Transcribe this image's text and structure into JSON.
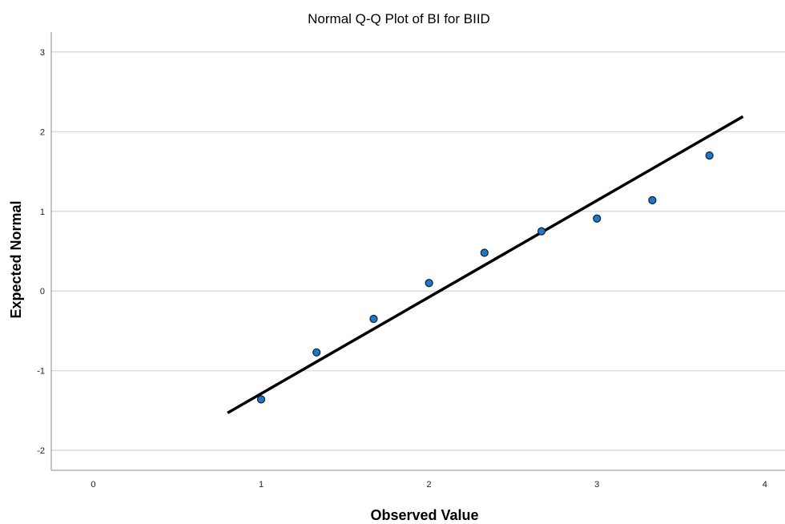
{
  "chart_data": {
    "type": "scatter",
    "title": "Normal Q-Q Plot of BI for BIID",
    "xlabel": "Observed Value",
    "ylabel": "Expected Normal",
    "xlim": [
      -0.25,
      4.12
    ],
    "ylim": [
      -2.25,
      3.25
    ],
    "x_ticks": [
      "0",
      "1",
      "2",
      "3",
      "4"
    ],
    "y_ticks": [
      "3",
      "2",
      "1",
      "0",
      "-1",
      "-2"
    ],
    "grid": "horizontal",
    "points": {
      "x": [
        1.0,
        1.33,
        1.67,
        2.0,
        2.33,
        2.67,
        3.0,
        3.33,
        3.67
      ],
      "y": [
        -1.36,
        -0.77,
        -0.35,
        0.1,
        0.48,
        0.75,
        0.91,
        1.14,
        1.7
      ]
    },
    "reference_line": {
      "x": [
        0.8,
        3.87
      ],
      "y": [
        -1.53,
        2.19
      ]
    },
    "colors": {
      "point_fill": "#1f77c9",
      "point_stroke": "#0b1e33",
      "line": "#000000",
      "grid": "#d4d4d4",
      "axis": "#8c8c8c"
    }
  }
}
